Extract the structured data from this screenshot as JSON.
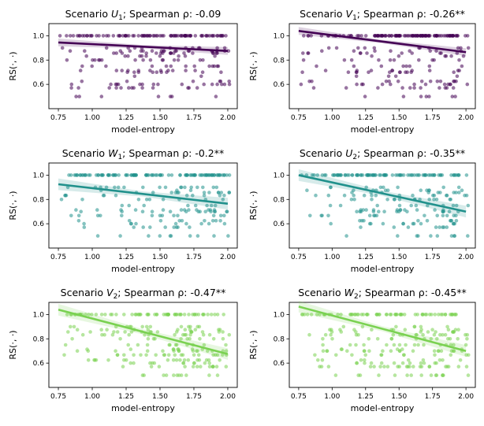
{
  "figure_description_lines": [],
  "chart_data": [
    {
      "type": "scatter",
      "scenario_letter": "U",
      "scenario_sub": "1",
      "title_prefix": "Scenario",
      "title_suffix": "; Spearman ρ: -0.09",
      "xlabel": "model-entropy",
      "ylabel": "RS(·, ·)",
      "xlim": [
        0.68,
        2.07
      ],
      "ylim": [
        0.4,
        1.1
      ],
      "xticks": [
        "0.75",
        "1.00",
        "1.25",
        "1.50",
        "1.75",
        "2.00"
      ],
      "yticks": [
        "0.6",
        "0.8",
        "1.0"
      ],
      "color": "#440154",
      "fit": {
        "x0": 0.75,
        "y0": 0.945,
        "x1": 2.0,
        "y1": 0.875
      },
      "band": 0.02,
      "seed": 11,
      "slope_strength": 0.1
    },
    {
      "type": "scatter",
      "scenario_letter": "V",
      "scenario_sub": "1",
      "title_prefix": "Scenario",
      "title_suffix": "; Spearman ρ: -0.26**",
      "xlabel": "model-entropy",
      "ylabel": "RS(·, ·)",
      "xlim": [
        0.68,
        2.07
      ],
      "ylim": [
        0.4,
        1.1
      ],
      "xticks": [
        "0.75",
        "1.00",
        "1.25",
        "1.50",
        "1.75",
        "2.00"
      ],
      "yticks": [
        "0.6",
        "0.8",
        "1.0"
      ],
      "color": "#440154",
      "fit": {
        "x0": 0.75,
        "y0": 1.04,
        "x1": 2.0,
        "y1": 0.865
      },
      "band": 0.02,
      "seed": 23,
      "slope_strength": 0.3
    },
    {
      "type": "scatter",
      "scenario_letter": "W",
      "scenario_sub": "1",
      "title_prefix": "Scenario",
      "title_suffix": "; Spearman ρ: -0.2**",
      "xlabel": "model-entropy",
      "ylabel": "RS(·, ·)",
      "xlim": [
        0.68,
        2.07
      ],
      "ylim": [
        0.4,
        1.1
      ],
      "xticks": [
        "0.75",
        "1.00",
        "1.25",
        "1.50",
        "1.75",
        "2.00"
      ],
      "yticks": [
        "0.6",
        "0.8",
        "1.0"
      ],
      "color": "#21918c",
      "fit": {
        "x0": 0.75,
        "y0": 0.925,
        "x1": 2.0,
        "y1": 0.765
      },
      "band": 0.03,
      "seed": 37,
      "slope_strength": 0.3
    },
    {
      "type": "scatter",
      "scenario_letter": "U",
      "scenario_sub": "2",
      "title_prefix": "Scenario",
      "title_suffix": "; Spearman ρ: -0.35**",
      "xlabel": "model-entropy",
      "ylabel": "RS(·, ·)",
      "xlim": [
        0.68,
        2.07
      ],
      "ylim": [
        0.4,
        1.1
      ],
      "xticks": [
        "0.75",
        "1.00",
        "1.25",
        "1.50",
        "1.75",
        "2.00"
      ],
      "yticks": [
        "0.6",
        "0.8",
        "1.0"
      ],
      "color": "#21918c",
      "fit": {
        "x0": 0.75,
        "y0": 1.0,
        "x1": 2.0,
        "y1": 0.7
      },
      "band": 0.03,
      "seed": 53,
      "slope_strength": 0.45
    },
    {
      "type": "scatter",
      "scenario_letter": "V",
      "scenario_sub": "2",
      "title_prefix": "Scenario",
      "title_suffix": "; Spearman ρ: -0.47**",
      "xlabel": "model-entropy",
      "ylabel": "RS(·, ·)",
      "xlim": [
        0.68,
        2.07
      ],
      "ylim": [
        0.4,
        1.1
      ],
      "xticks": [
        "0.75",
        "1.00",
        "1.25",
        "1.50",
        "1.75",
        "2.00"
      ],
      "yticks": [
        "0.6",
        "0.8",
        "1.0"
      ],
      "color": "#7ad151",
      "fit": {
        "x0": 0.75,
        "y0": 1.04,
        "x1": 2.0,
        "y1": 0.675
      },
      "band": 0.03,
      "seed": 71,
      "slope_strength": 0.55
    },
    {
      "type": "scatter",
      "scenario_letter": "W",
      "scenario_sub": "2",
      "title_prefix": "Scenario",
      "title_suffix": "; Spearman ρ: -0.45**",
      "xlabel": "model-entropy",
      "ylabel": "RS(·, ·)",
      "xlim": [
        0.68,
        2.07
      ],
      "ylim": [
        0.4,
        1.1
      ],
      "xticks": [
        "0.75",
        "1.00",
        "1.25",
        "1.50",
        "1.75",
        "2.00"
      ],
      "yticks": [
        "0.6",
        "0.8",
        "1.0"
      ],
      "color": "#7ad151",
      "fit": {
        "x0": 0.75,
        "y0": 1.065,
        "x1": 2.0,
        "y1": 0.7
      },
      "band": 0.03,
      "seed": 89,
      "slope_strength": 0.55
    }
  ]
}
